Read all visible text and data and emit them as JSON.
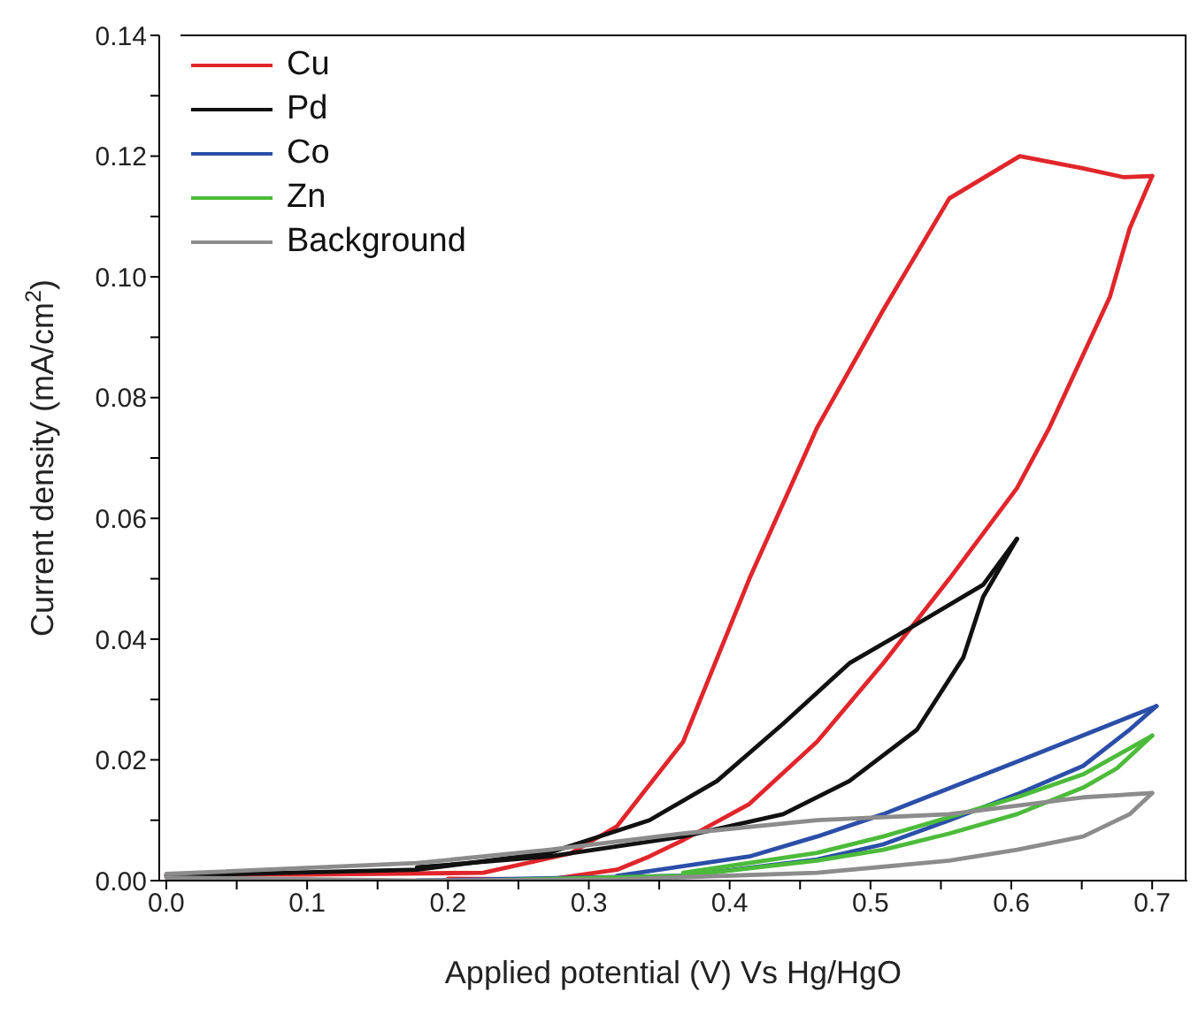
{
  "chart_data": {
    "type": "line",
    "xlabel": "Applied potential (V) Vs Hg/HgO",
    "ylabel": "Current density (mA/cm$^{2}$)",
    "xlim": [
      -0.005,
      0.725
    ],
    "ylim": [
      0,
      0.14
    ],
    "xticks": [
      {
        "value": 0,
        "label": "0.0"
      },
      {
        "value": 0.05,
        "label": null
      },
      {
        "value": 0.1,
        "label": "0.1"
      },
      {
        "value": 0.15,
        "label": null
      },
      {
        "value": 0.2,
        "label": "0.2"
      },
      {
        "value": 0.25,
        "label": null
      },
      {
        "value": 0.3,
        "label": "0.3"
      },
      {
        "value": 0.35,
        "label": null
      },
      {
        "value": 0.4,
        "label": "0.4"
      },
      {
        "value": 0.45,
        "label": null
      },
      {
        "value": 0.5,
        "label": "0.5"
      },
      {
        "value": 0.55,
        "label": null
      },
      {
        "value": 0.6,
        "label": "0.6"
      },
      {
        "value": 0.65,
        "label": null
      },
      {
        "value": 0.7,
        "label": "0.7"
      }
    ],
    "yticks": [
      {
        "value": 0,
        "label": "0.00"
      },
      {
        "value": 0.01,
        "label": null
      },
      {
        "value": 0.02,
        "label": "0.02"
      },
      {
        "value": 0.03,
        "label": null
      },
      {
        "value": 0.04,
        "label": "0.04"
      },
      {
        "value": 0.05,
        "label": null
      },
      {
        "value": 0.06,
        "label": "0.06"
      },
      {
        "value": 0.07,
        "label": null
      },
      {
        "value": 0.08,
        "label": "0.08"
      },
      {
        "value": 0.09,
        "label": null
      },
      {
        "value": 0.1,
        "label": "0.10"
      },
      {
        "value": 0.11,
        "label": null
      },
      {
        "value": 0.12,
        "label": "0.12"
      },
      {
        "value": 0.13,
        "label": null
      },
      {
        "value": 0.14,
        "label": "0.14"
      }
    ],
    "grid": false,
    "legend": "top left",
    "marker": "none",
    "line_style": "solid",
    "series": [
      {
        "name": "Cu",
        "color": "#e0262b",
        "x": [
          0,
          0.1,
          0.225,
          0.287,
          0.32,
          0.367,
          0.414,
          0.462,
          0.509,
          0.556,
          0.606,
          0.65,
          0.68,
          0.7
        ],
        "values": [
          0.001,
          0.001,
          0.0013,
          0.0045,
          0.009,
          0.023,
          0.05,
          0.075,
          0.0945,
          0.113,
          0.12,
          0.118,
          0.1165,
          0.1167
        ]
      },
      {
        "color": "#e0262b",
        "x": [
          0.2,
          0.272,
          0.32,
          0.343,
          0.367,
          0.414,
          0.462,
          0.509,
          0.556,
          0.604,
          0.627,
          0.67,
          0.684,
          0.7
        ],
        "values": [
          0.0003,
          0.0002,
          0.0018,
          0.004,
          0.0067,
          0.0127,
          0.023,
          0.036,
          0.05,
          0.065,
          0.075,
          0.0967,
          0.108,
          0.1167
        ]
      },
      {
        "name": "Pd",
        "color": "#111111",
        "x": [
          0,
          0.178,
          0.272,
          0.343,
          0.391,
          0.438,
          0.485,
          0.533,
          0.58,
          0.604
        ],
        "values": [
          0.0008,
          0.0018,
          0.0046,
          0.01,
          0.0165,
          0.026,
          0.036,
          0.0425,
          0.049,
          0.0566
        ]
      },
      {
        "color": "#111111",
        "x": [
          0.178,
          0.272,
          0.367,
          0.438,
          0.485,
          0.533,
          0.566,
          0.58,
          0.604
        ],
        "values": [
          0.0022,
          0.004,
          0.0073,
          0.011,
          0.0165,
          0.025,
          0.037,
          0.047,
          0.0566
        ]
      },
      {
        "name": "Co",
        "color": "#2b4fa8",
        "x": [
          0.178,
          0.367,
          0.462,
          0.509,
          0.556,
          0.604,
          0.651,
          0.684,
          0.703
        ],
        "values": [
          0,
          0.0008,
          0.0035,
          0.006,
          0.01,
          0.0143,
          0.019,
          0.025,
          0.0289
        ]
      },
      {
        "color": "#2b4fa8",
        "x": [
          0.32,
          0.414,
          0.462,
          0.509,
          0.604,
          0.703
        ],
        "values": [
          0.0008,
          0.004,
          0.0073,
          0.011,
          0.0197,
          0.0289
        ]
      },
      {
        "name": "Zn",
        "color": "#4cbb3a",
        "x": [
          0.225,
          0.367,
          0.462,
          0.509,
          0.556,
          0.604,
          0.651,
          0.675,
          0.7
        ],
        "values": [
          0,
          0.0008,
          0.0033,
          0.0051,
          0.0078,
          0.011,
          0.0154,
          0.0186,
          0.024
        ]
      },
      {
        "color": "#4cbb3a",
        "x": [
          0.367,
          0.462,
          0.509,
          0.556,
          0.604,
          0.651,
          0.7
        ],
        "values": [
          0.0013,
          0.0046,
          0.0073,
          0.0105,
          0.0138,
          0.0176,
          0.024
        ]
      },
      {
        "name": "Background",
        "color": "#8c8c8c",
        "x": [
          0,
          0.178,
          0.272,
          0.367,
          0.462,
          0.556,
          0.651,
          0.7
        ],
        "values": [
          0.0011,
          0.0029,
          0.0051,
          0.0078,
          0.01,
          0.011,
          0.0138,
          0.0145
        ]
      },
      {
        "color": "#8c8c8c",
        "x": [
          0,
          0.178,
          0.32,
          0.462,
          0.556,
          0.604,
          0.651,
          0.684,
          0.7
        ],
        "values": [
          0.0005,
          0,
          0.0002,
          0.0013,
          0.0033,
          0.0051,
          0.0073,
          0.011,
          0.0145
        ]
      }
    ]
  }
}
